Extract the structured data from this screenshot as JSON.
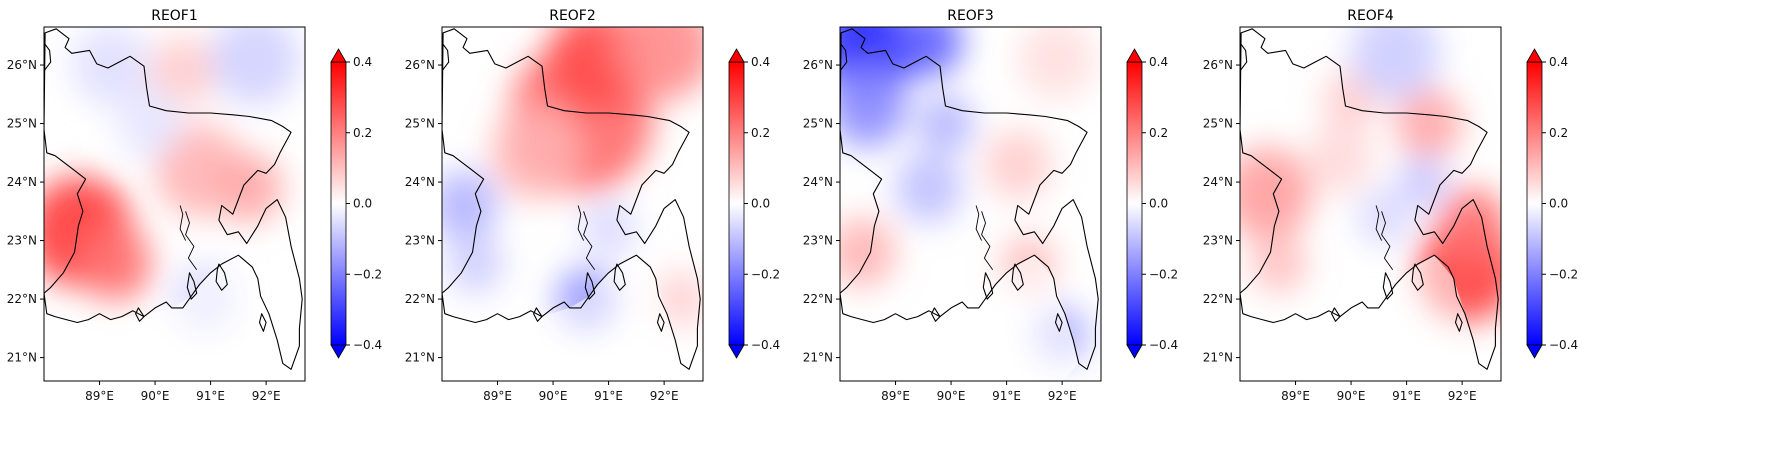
{
  "figure": {
    "panels": [
      {
        "title": "REOF1",
        "blobs": [
          {
            "lon": 88.65,
            "lat": 23.15,
            "r_deg": 0.95,
            "value": 0.31
          },
          {
            "lon": 89.3,
            "lat": 22.6,
            "r_deg": 0.65,
            "value": 0.22
          },
          {
            "lon": 90.8,
            "lat": 24.2,
            "r_deg": 0.8,
            "value": 0.12
          },
          {
            "lon": 91.7,
            "lat": 23.9,
            "r_deg": 0.6,
            "value": 0.14
          },
          {
            "lon": 90.5,
            "lat": 25.9,
            "r_deg": 0.6,
            "value": 0.08
          },
          {
            "lon": 91.8,
            "lat": 26.1,
            "r_deg": 0.8,
            "value": -0.07
          },
          {
            "lon": 89.2,
            "lat": 26.0,
            "r_deg": 0.7,
            "value": -0.05
          },
          {
            "lon": 90.9,
            "lat": 22.0,
            "r_deg": 0.6,
            "value": -0.06
          },
          {
            "lon": 89.9,
            "lat": 25.0,
            "r_deg": 0.6,
            "value": -0.04
          }
        ]
      },
      {
        "title": "REOF2",
        "blobs": [
          {
            "lon": 90.5,
            "lat": 25.1,
            "r_deg": 1.3,
            "value": 0.23
          },
          {
            "lon": 90.8,
            "lat": 26.1,
            "r_deg": 0.9,
            "value": 0.28
          },
          {
            "lon": 92.0,
            "lat": 26.3,
            "r_deg": 0.9,
            "value": 0.18
          },
          {
            "lon": 89.7,
            "lat": 24.5,
            "r_deg": 0.8,
            "value": 0.12
          },
          {
            "lon": 88.4,
            "lat": 23.6,
            "r_deg": 0.6,
            "value": -0.12
          },
          {
            "lon": 88.6,
            "lat": 22.6,
            "r_deg": 0.5,
            "value": -0.08
          },
          {
            "lon": 90.6,
            "lat": 22.0,
            "r_deg": 0.55,
            "value": -0.16
          },
          {
            "lon": 91.0,
            "lat": 23.2,
            "r_deg": 0.5,
            "value": -0.06
          },
          {
            "lon": 92.3,
            "lat": 22.0,
            "r_deg": 0.5,
            "value": 0.07
          }
        ]
      },
      {
        "title": "REOF3",
        "blobs": [
          {
            "lon": 88.5,
            "lat": 26.3,
            "r_deg": 0.9,
            "value": -0.34
          },
          {
            "lon": 89.6,
            "lat": 26.4,
            "r_deg": 0.6,
            "value": -0.25
          },
          {
            "lon": 88.5,
            "lat": 25.3,
            "r_deg": 0.7,
            "value": -0.18
          },
          {
            "lon": 89.9,
            "lat": 25.0,
            "r_deg": 0.5,
            "value": -0.12
          },
          {
            "lon": 89.6,
            "lat": 23.9,
            "r_deg": 0.6,
            "value": -0.1
          },
          {
            "lon": 88.4,
            "lat": 22.8,
            "r_deg": 0.6,
            "value": 0.12
          },
          {
            "lon": 91.2,
            "lat": 24.3,
            "r_deg": 0.6,
            "value": 0.08
          },
          {
            "lon": 91.4,
            "lat": 22.6,
            "r_deg": 0.5,
            "value": 0.1
          },
          {
            "lon": 92.0,
            "lat": 21.4,
            "r_deg": 0.5,
            "value": -0.12
          },
          {
            "lon": 91.9,
            "lat": 26.1,
            "r_deg": 0.7,
            "value": 0.05
          }
        ]
      },
      {
        "title": "REOF4",
        "blobs": [
          {
            "lon": 92.1,
            "lat": 22.5,
            "r_deg": 0.9,
            "value": 0.3
          },
          {
            "lon": 92.2,
            "lat": 23.3,
            "r_deg": 0.6,
            "value": 0.22
          },
          {
            "lon": 88.5,
            "lat": 23.8,
            "r_deg": 0.8,
            "value": 0.15
          },
          {
            "lon": 88.7,
            "lat": 22.6,
            "r_deg": 0.5,
            "value": 0.1
          },
          {
            "lon": 91.4,
            "lat": 25.0,
            "r_deg": 0.6,
            "value": 0.14
          },
          {
            "lon": 90.0,
            "lat": 25.4,
            "r_deg": 0.5,
            "value": 0.08
          },
          {
            "lon": 91.3,
            "lat": 24.0,
            "r_deg": 0.45,
            "value": -0.09
          },
          {
            "lon": 90.8,
            "lat": 26.2,
            "r_deg": 0.8,
            "value": -0.08
          },
          {
            "lon": 90.6,
            "lat": 23.4,
            "r_deg": 0.5,
            "value": -0.06
          },
          {
            "lon": 89.8,
            "lat": 24.4,
            "r_deg": 0.6,
            "value": 0.06
          }
        ]
      }
    ],
    "lon_ticks": [
      "89°E",
      "90°E",
      "91°E",
      "92°E"
    ],
    "lat_ticks": [
      "21°N",
      "22°N",
      "23°N",
      "24°N",
      "25°N",
      "26°N"
    ],
    "colorbar": {
      "ticks": [
        "0.4",
        "0.2",
        "0.0",
        "−0.2",
        "−0.4"
      ],
      "min": -0.4,
      "max": 0.4,
      "colormap": "bwr",
      "low_color": "#0000ff",
      "mid_color": "#ffffff",
      "high_color": "#ff0000",
      "extend": "both"
    }
  }
}
